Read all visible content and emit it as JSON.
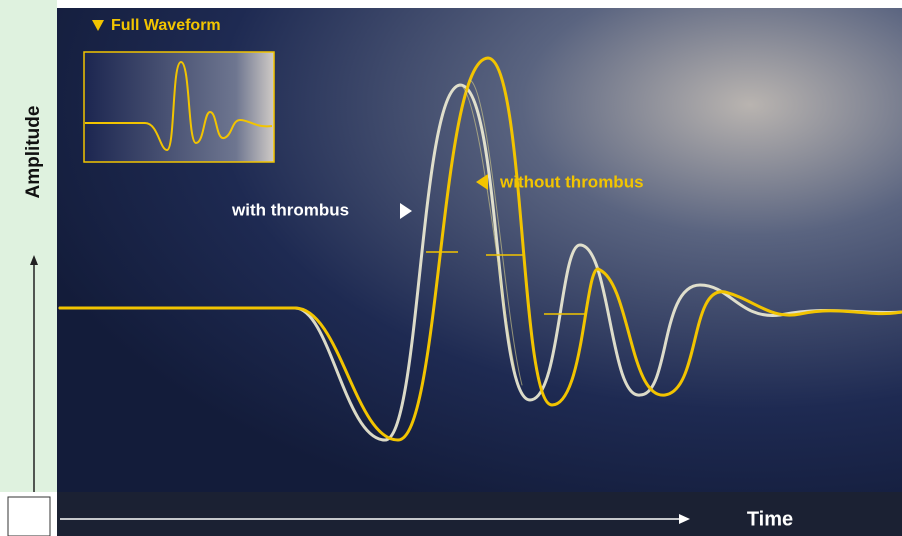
{
  "inset": {
    "title": "Full Waveform"
  },
  "axes": {
    "y_label": "Amplitude",
    "x_label": "Time"
  },
  "annotations": {
    "with": "with thrombus",
    "without": "without thrombus"
  }
}
